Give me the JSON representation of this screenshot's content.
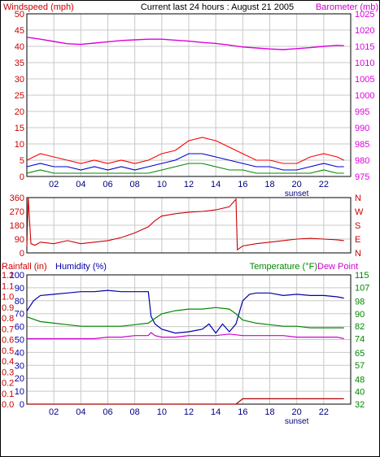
{
  "header": {
    "left_label": "Windspeed (mph)",
    "center_label": "Current last 24 hours : August 21 2005",
    "right_label": "Barometer (mb)"
  },
  "colors": {
    "windspeed_axis": "#cc0000",
    "barometer": "#dd00dd",
    "wind_gust": "#ff0000",
    "wind_avg": "#0000cc",
    "wind_min": "#008800",
    "wind_dir": "#cc0000",
    "humidity": "#0000aa",
    "temperature": "#008800",
    "dew_point": "#cc00cc",
    "rainfall": "#aa0000",
    "grid": "#c8c8c8",
    "x_tick_label": "#000080"
  },
  "chart_data": [
    {
      "type": "line",
      "panel": "wind-barometer",
      "x_ticks": [
        "02",
        "04",
        "06",
        "08",
        "10",
        "12",
        "14",
        "16",
        "18",
        "20",
        "22"
      ],
      "x_annotation": "sunset",
      "xlim": [
        0,
        24
      ],
      "y_left": {
        "label": "Windspeed (mph)",
        "ticks": [
          0,
          5,
          10,
          15,
          20,
          25,
          30,
          35,
          40,
          45,
          50
        ],
        "lim": [
          0,
          50
        ]
      },
      "y_right": {
        "label": "Barometer (mb)",
        "ticks": [
          975,
          980,
          985,
          990,
          995,
          1000,
          1005,
          1010,
          1015,
          1020,
          1025
        ],
        "lim": [
          975,
          1025
        ]
      },
      "series": [
        {
          "axis": "right",
          "x": [
            0,
            1,
            2,
            3,
            4,
            5,
            6,
            7,
            8,
            9,
            10,
            11,
            12,
            13,
            14,
            15,
            16,
            17,
            18,
            19,
            20,
            21,
            22,
            23,
            23.5
          ],
          "values": [
            1017.8,
            1017.2,
            1016.5,
            1015.8,
            1015.6,
            1016.0,
            1016.4,
            1016.8,
            1017.0,
            1017.2,
            1017.2,
            1016.9,
            1016.6,
            1016.2,
            1015.9,
            1015.4,
            1014.8,
            1014.5,
            1014.2,
            1014.0,
            1014.3,
            1014.6,
            1015.0,
            1015.3,
            1015.2
          ]
        },
        {
          "axis": "left",
          "x": [
            0,
            1,
            2,
            3,
            4,
            5,
            6,
            7,
            8,
            9,
            10,
            11,
            12,
            13,
            14,
            15,
            16,
            17,
            18,
            19,
            20,
            21,
            22,
            23,
            23.5
          ],
          "values": [
            5,
            7,
            6,
            5,
            4,
            5,
            4,
            5,
            4,
            5,
            7,
            8,
            11,
            12,
            11,
            9,
            7,
            5,
            5,
            4,
            4,
            6,
            7,
            6,
            5
          ]
        },
        {
          "axis": "left",
          "x": [
            0,
            1,
            2,
            3,
            4,
            5,
            6,
            7,
            8,
            9,
            10,
            11,
            12,
            13,
            14,
            15,
            16,
            17,
            18,
            19,
            20,
            21,
            22,
            23,
            23.5
          ],
          "values": [
            3,
            4,
            3,
            3,
            2,
            3,
            2,
            3,
            2,
            3,
            4,
            5,
            7,
            7,
            6,
            5,
            4,
            3,
            3,
            2,
            2,
            3,
            4,
            3,
            3
          ]
        },
        {
          "axis": "left",
          "x": [
            0,
            1,
            2,
            3,
            4,
            5,
            6,
            7,
            8,
            9,
            10,
            11,
            12,
            13,
            14,
            15,
            16,
            17,
            18,
            19,
            20,
            21,
            22,
            23,
            23.5
          ],
          "values": [
            1,
            2,
            1,
            1,
            1,
            1,
            1,
            1,
            1,
            1,
            2,
            3,
            4,
            4,
            3,
            2,
            2,
            1,
            1,
            1,
            1,
            1,
            2,
            1,
            1
          ]
        }
      ]
    },
    {
      "type": "line",
      "panel": "wind-direction",
      "xlim": [
        0,
        24
      ],
      "y_left": {
        "ticks": [
          0,
          90,
          180,
          270,
          360
        ],
        "lim": [
          0,
          360
        ]
      },
      "y_right": {
        "ticks": [
          "N",
          "W",
          "S",
          "E",
          "N"
        ]
      },
      "series": [
        {
          "x": [
            0,
            0.1,
            0.3,
            0.6,
            1,
            2,
            3,
            4,
            5,
            6,
            7,
            8,
            9,
            9.5,
            10,
            11,
            12,
            13,
            14,
            15,
            15.5,
            15.6,
            16,
            17,
            18,
            19,
            20,
            21,
            22,
            23,
            23.5
          ],
          "values": [
            40,
            360,
            60,
            50,
            70,
            60,
            80,
            60,
            70,
            80,
            100,
            130,
            170,
            210,
            240,
            255,
            265,
            270,
            280,
            300,
            350,
            20,
            45,
            60,
            70,
            80,
            90,
            95,
            90,
            85,
            80
          ]
        }
      ]
    },
    {
      "type": "line",
      "panel": "rain-humidity-temperature",
      "x_ticks": [
        "02",
        "04",
        "06",
        "08",
        "10",
        "12",
        "14",
        "16",
        "18",
        "20",
        "22"
      ],
      "x_annotation": "sunset",
      "xlim": [
        0,
        24
      ],
      "y_rain": {
        "label": "Rainfall (in)",
        "ticks": [
          0.0,
          0.1,
          0.2,
          0.3,
          0.4,
          0.5,
          0.6,
          0.7,
          0.8,
          0.9,
          1.0,
          1.1,
          1.2
        ],
        "lim": [
          0,
          1.2
        ]
      },
      "y_humidity": {
        "label": "Humidity (%)",
        "ticks": [
          0,
          10,
          20,
          30,
          40,
          50,
          60,
          70,
          80,
          90,
          100
        ],
        "lim": [
          0,
          100
        ]
      },
      "y_temp": {
        "label": "Temperature (°F)",
        "ticks": [
          32,
          40,
          48,
          57,
          65,
          74,
          82,
          90,
          98,
          107,
          115
        ],
        "lim": [
          32,
          115
        ]
      },
      "legend_extra": "Dew Point",
      "series": [
        {
          "axis": "humidity",
          "x": [
            0,
            0.5,
            1,
            2,
            3,
            4,
            5,
            6,
            7,
            8,
            9,
            9.2,
            9.5,
            10,
            11,
            12,
            13,
            13.5,
            14,
            14.5,
            15,
            15.5,
            16,
            16.5,
            17,
            18,
            19,
            20,
            21,
            22,
            23,
            23.5
          ],
          "values": [
            72,
            80,
            84,
            85,
            86,
            87,
            87,
            88,
            87,
            87,
            87,
            68,
            62,
            58,
            55,
            56,
            58,
            62,
            55,
            62,
            56,
            62,
            80,
            85,
            86,
            86,
            84,
            85,
            84,
            84,
            83,
            82
          ]
        },
        {
          "axis": "temp",
          "x": [
            0,
            1,
            2,
            3,
            4,
            5,
            6,
            7,
            8,
            9,
            9.5,
            10,
            11,
            12,
            13,
            14,
            15,
            15.5,
            16,
            17,
            18,
            19,
            20,
            21,
            22,
            23,
            23.5
          ],
          "values": [
            88,
            85,
            84,
            83,
            82,
            82,
            82,
            82,
            83,
            84,
            87,
            90,
            92,
            93,
            93,
            94,
            93,
            90,
            86,
            84,
            83,
            82,
            82,
            81,
            81,
            81,
            81
          ]
        },
        {
          "axis": "temp",
          "x": [
            0,
            1,
            2,
            3,
            4,
            5,
            6,
            7,
            8,
            9,
            9.2,
            9.5,
            10,
            11,
            12,
            13,
            14,
            15,
            16,
            17,
            18,
            19,
            20,
            21,
            22,
            23,
            23.5
          ],
          "values": [
            74,
            74,
            74,
            74,
            74,
            74,
            75,
            75,
            76,
            76,
            78,
            76,
            75,
            75,
            76,
            76,
            76,
            77,
            76,
            76,
            76,
            76,
            75,
            75,
            75,
            75,
            74
          ]
        },
        {
          "axis": "rain",
          "x": [
            0,
            15.5,
            16,
            23.5
          ],
          "values": [
            0.0,
            0.0,
            0.05,
            0.05
          ]
        }
      ]
    }
  ]
}
